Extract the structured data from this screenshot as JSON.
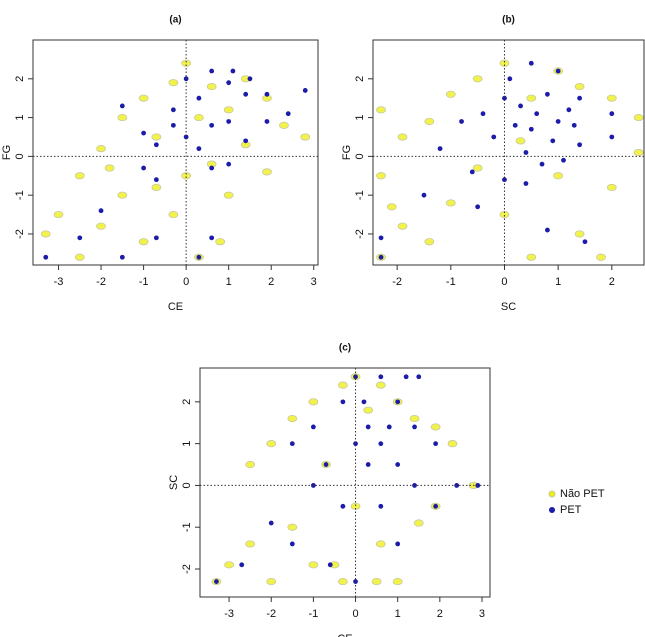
{
  "chart_data": [
    {
      "type": "scatter",
      "title": "(a)",
      "xlabel": "CE",
      "ylabel": "FG",
      "xlim": [
        -3.6,
        3.1
      ],
      "ylim": [
        -2.8,
        3.0
      ],
      "xticks": [
        -3,
        -2,
        -1,
        0,
        1,
        2,
        3
      ],
      "yticks": [
        -2,
        -1,
        0,
        1,
        2
      ],
      "hline": 0,
      "vline": 0,
      "series": [
        {
          "color": "#eeee10",
          "x": [
            -3.3,
            -3.0,
            -2.5,
            -2.5,
            -2.0,
            -2.0,
            -1.5,
            -1.5,
            -1.0,
            -1.0,
            -0.7,
            -0.7,
            -0.3,
            -0.3,
            0,
            0,
            0.3,
            0.3,
            0.6,
            0.6,
            1.0,
            1.0,
            1.4,
            1.4,
            1.9,
            1.9,
            2.3,
            2.8,
            -1.8,
            0.8
          ],
          "values": [
            -2.0,
            -1.5,
            -0.5,
            -2.6,
            0.2,
            -1.8,
            1.0,
            -1.0,
            1.5,
            -2.2,
            0.5,
            -0.8,
            1.9,
            -1.5,
            2.4,
            -0.5,
            1.0,
            -2.6,
            1.8,
            -0.2,
            1.2,
            -1.0,
            2.0,
            0.3,
            1.5,
            -0.4,
            0.8,
            0.5,
            -0.3,
            -2.2
          ]
        },
        {
          "color": "#1c1caa",
          "x": [
            -3.3,
            -2.5,
            -2.0,
            -1.5,
            -1.5,
            -1.0,
            -0.7,
            -0.7,
            -0.3,
            -0.3,
            0,
            0,
            0.3,
            0.3,
            0.3,
            0.6,
            0.6,
            0.6,
            1.0,
            1.0,
            1.0,
            1.1,
            1.4,
            1.4,
            1.5,
            1.9,
            1.9,
            2.4,
            2.8,
            -0.7,
            0.6,
            -1.0
          ],
          "values": [
            -2.6,
            -2.1,
            -1.4,
            1.3,
            -2.6,
            0.6,
            0.3,
            -2.1,
            1.2,
            0.8,
            2.0,
            0.5,
            1.5,
            0.2,
            -2.6,
            2.2,
            0.8,
            -0.3,
            1.9,
            0.9,
            -0.2,
            2.2,
            1.6,
            0.4,
            2.0,
            0.9,
            1.6,
            1.1,
            1.7,
            -0.6,
            -2.1,
            -0.3
          ]
        }
      ]
    },
    {
      "type": "scatter",
      "title": "(b)",
      "xlabel": "SC",
      "ylabel": "FG",
      "xlim": [
        -2.45,
        2.6
      ],
      "ylim": [
        -2.8,
        3.0
      ],
      "xticks": [
        -2,
        -1,
        0,
        1,
        2
      ],
      "yticks": [
        -2,
        -1,
        0,
        1,
        2
      ],
      "hline": 0,
      "vline": 0,
      "series": [
        {
          "color": "#eeee10",
          "x": [
            -2.3,
            -2.3,
            -2.3,
            -1.9,
            -1.9,
            -1.4,
            -1.4,
            -1.0,
            -1.0,
            -0.5,
            -0.5,
            0,
            0,
            0.5,
            0.5,
            1.0,
            1.0,
            1.4,
            1.4,
            2.0,
            2.0,
            2.5,
            2.5,
            -2.1,
            0.3,
            1.8
          ],
          "values": [
            -2.6,
            -0.5,
            1.2,
            -1.8,
            0.5,
            -2.2,
            0.9,
            1.6,
            -1.2,
            2.0,
            -0.3,
            2.4,
            -1.5,
            1.5,
            -2.6,
            2.2,
            -0.5,
            1.8,
            -2.0,
            1.5,
            -0.8,
            1.0,
            0.1,
            -1.3,
            0.4,
            -2.6
          ]
        },
        {
          "color": "#1c1caa",
          "x": [
            -2.3,
            -2.3,
            -1.5,
            -1.2,
            -0.8,
            -0.6,
            -0.4,
            -0.2,
            0,
            0,
            0.1,
            0.2,
            0.3,
            0.4,
            0.5,
            0.5,
            0.6,
            0.7,
            0.8,
            0.9,
            1.0,
            1.0,
            1.1,
            1.2,
            1.4,
            1.4,
            1.5,
            2.0,
            2.0,
            -0.5,
            0.4,
            0.8,
            1.3
          ],
          "values": [
            -2.6,
            -2.1,
            -1.0,
            0.2,
            0.9,
            -0.4,
            1.1,
            0.5,
            1.5,
            -0.6,
            2.0,
            0.8,
            1.3,
            0.1,
            2.4,
            0.7,
            1.1,
            -0.2,
            1.6,
            0.4,
            2.2,
            0.9,
            -0.1,
            1.2,
            1.5,
            0.3,
            -2.2,
            1.1,
            0.5,
            -1.3,
            -0.7,
            -1.9,
            0.8
          ]
        }
      ]
    },
    {
      "type": "scatter",
      "title": "(c)",
      "xlabel": "CE",
      "ylabel": "SC",
      "xlim": [
        -3.69,
        3.19
      ],
      "ylim": [
        -2.67,
        2.81
      ],
      "xticks": [
        -3,
        -2,
        -1,
        0,
        1,
        2,
        3
      ],
      "yticks": [
        -2,
        -1,
        0,
        1,
        2
      ],
      "hline": 0,
      "vline": 0,
      "legend": "right",
      "series": [
        {
          "name": "Não PET",
          "color": "#eeee10",
          "x": [
            -3.3,
            -3.0,
            -2.5,
            -2.5,
            -2.0,
            -2.0,
            -1.5,
            -1.5,
            -1.0,
            -1.0,
            -0.7,
            -0.3,
            -0.3,
            0,
            0,
            0.3,
            0.6,
            0.6,
            1.0,
            1.0,
            1.4,
            1.9,
            1.9,
            2.3,
            2.8,
            0.5,
            -0.5,
            1.5
          ],
          "values": [
            -2.3,
            -1.9,
            -1.4,
            0.5,
            -2.3,
            1.0,
            -1.0,
            1.6,
            2.0,
            -1.9,
            0.5,
            2.4,
            -2.3,
            2.6,
            -0.5,
            1.8,
            2.4,
            -1.4,
            2.0,
            -2.3,
            1.6,
            1.4,
            -0.5,
            1.0,
            0,
            -2.3,
            -1.9,
            -0.9
          ]
        },
        {
          "name": "PET",
          "color": "#1c1caa",
          "x": [
            -3.3,
            -2.7,
            -2.0,
            -1.5,
            -1.5,
            -1.0,
            -1.0,
            -0.7,
            -0.3,
            -0.3,
            0,
            0,
            0,
            0.3,
            0.3,
            0.6,
            0.6,
            0.6,
            1.0,
            1.0,
            1.0,
            1.4,
            1.4,
            1.5,
            1.9,
            1.9,
            2.4,
            2.9,
            0.2,
            0.8,
            -0.6,
            1.2
          ],
          "values": [
            -2.3,
            -1.9,
            -0.9,
            1.0,
            -1.4,
            1.4,
            0,
            0.5,
            2.0,
            -0.5,
            2.6,
            1.0,
            -2.3,
            1.4,
            0.5,
            2.6,
            1.0,
            -0.5,
            2.0,
            0.5,
            -1.4,
            1.4,
            0,
            2.6,
            1.0,
            -0.5,
            0,
            0,
            2.0,
            1.4,
            -1.9,
            2.6
          ]
        }
      ]
    }
  ]
}
